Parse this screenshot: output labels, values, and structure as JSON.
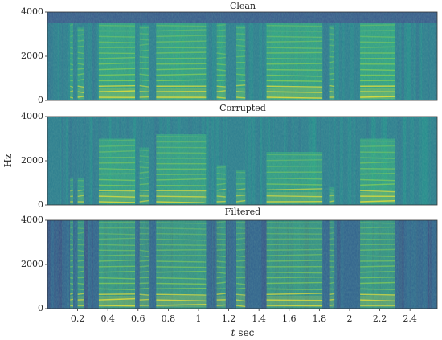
{
  "chart_data": {
    "type": "heatmap",
    "panels": [
      {
        "title": "Clean",
        "ylim": [
          0,
          4000
        ],
        "ytick_labels": [
          "0",
          "2000",
          "4000"
        ],
        "regions": [
          {
            "t": [
              0.15,
              0.17
            ],
            "fmax": 3500,
            "level": 0.3
          },
          {
            "t": [
              0.2,
              0.24
            ],
            "fmax": 3300,
            "level": 0.55
          },
          {
            "t": [
              0.34,
              0.58
            ],
            "fmax": 3500,
            "level": 0.85
          },
          {
            "t": [
              0.61,
              0.67
            ],
            "fmax": 3400,
            "level": 0.45
          },
          {
            "t": [
              0.72,
              1.05
            ],
            "fmax": 3500,
            "level": 0.8
          },
          {
            "t": [
              1.12,
              1.18
            ],
            "fmax": 3500,
            "level": 0.55
          },
          {
            "t": [
              1.25,
              1.31
            ],
            "fmax": 3400,
            "level": 0.5
          },
          {
            "t": [
              1.45,
              1.82
            ],
            "fmax": 3500,
            "level": 0.8
          },
          {
            "t": [
              1.87,
              1.9
            ],
            "fmax": 3400,
            "level": 0.5
          },
          {
            "t": [
              2.07,
              2.3
            ],
            "fmax": 3500,
            "level": 0.85
          }
        ]
      },
      {
        "title": "Corrupted",
        "ylim": [
          0,
          4000
        ],
        "ytick_labels": [
          "0",
          "2000",
          "4000"
        ],
        "regions": [
          {
            "t": [
              0.15,
              0.17
            ],
            "fmax": 1200,
            "level": 0.3
          },
          {
            "t": [
              0.2,
              0.24
            ],
            "fmax": 1200,
            "level": 0.4
          },
          {
            "t": [
              0.34,
              0.58
            ],
            "fmax": 3000,
            "level": 0.7
          },
          {
            "t": [
              0.61,
              0.67
            ],
            "fmax": 2600,
            "level": 0.35
          },
          {
            "t": [
              0.72,
              1.05
            ],
            "fmax": 3200,
            "level": 0.65
          },
          {
            "t": [
              1.12,
              1.18
            ],
            "fmax": 1800,
            "level": 0.4
          },
          {
            "t": [
              1.25,
              1.31
            ],
            "fmax": 1600,
            "level": 0.35
          },
          {
            "t": [
              1.45,
              1.82
            ],
            "fmax": 2400,
            "level": 0.6
          },
          {
            "t": [
              1.87,
              1.9
            ],
            "fmax": 800,
            "level": 0.35
          },
          {
            "t": [
              2.07,
              2.3
            ],
            "fmax": 3000,
            "level": 0.75
          }
        ]
      },
      {
        "title": "Filtered",
        "ylim": [
          0,
          4000
        ],
        "ytick_labels": [
          "0",
          "2000",
          "4000"
        ],
        "regions": [
          {
            "t": [
              0.15,
              0.17
            ],
            "fmax": 4000,
            "level": 0.45
          },
          {
            "t": [
              0.2,
              0.24
            ],
            "fmax": 4000,
            "level": 0.55
          },
          {
            "t": [
              0.34,
              0.58
            ],
            "fmax": 4000,
            "level": 0.8
          },
          {
            "t": [
              0.61,
              0.67
            ],
            "fmax": 4000,
            "level": 0.5
          },
          {
            "t": [
              0.72,
              1.05
            ],
            "fmax": 4000,
            "level": 0.75
          },
          {
            "t": [
              1.12,
              1.18
            ],
            "fmax": 4000,
            "level": 0.55
          },
          {
            "t": [
              1.25,
              1.31
            ],
            "fmax": 4000,
            "level": 0.5
          },
          {
            "t": [
              1.45,
              1.82
            ],
            "fmax": 4000,
            "level": 0.7
          },
          {
            "t": [
              1.87,
              1.9
            ],
            "fmax": 4000,
            "level": 0.5
          },
          {
            "t": [
              2.07,
              2.3
            ],
            "fmax": 4000,
            "level": 0.75
          }
        ]
      }
    ],
    "xlim": [
      0,
      2.58
    ],
    "xticks": [
      0.2,
      0.4,
      0.6,
      0.8,
      1,
      1.2,
      1.4,
      1.6,
      1.8,
      2,
      2.2,
      2.4
    ],
    "xtick_labels": [
      "0.2",
      "0.4",
      "0.6",
      "0.8",
      "1",
      "1.2",
      "1.4",
      "1.6",
      "1.8",
      "2",
      "2.2",
      "2.4"
    ],
    "xlabel_symbol": "t",
    "xlabel_unit": "sec",
    "ylabel": "Hz",
    "colormap": [
      "#39477f",
      "#3b528b",
      "#2e6e8e",
      "#21918c",
      "#35b779",
      "#90d743",
      "#fde725"
    ]
  }
}
